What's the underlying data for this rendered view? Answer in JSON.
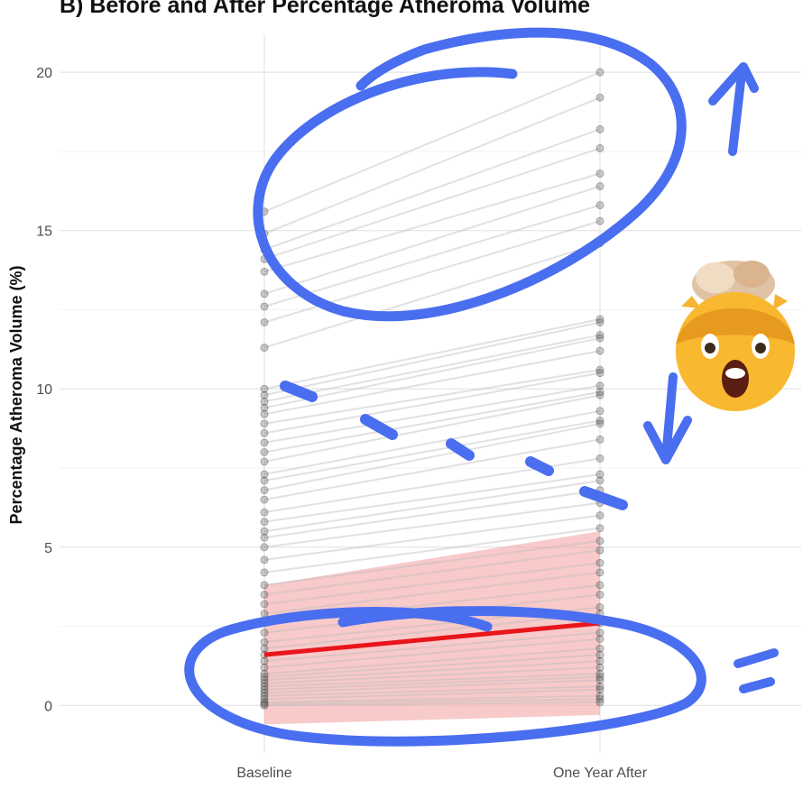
{
  "chart_data": {
    "type": "line",
    "title": "B) Before and After Percentage Atheroma Volume",
    "xlabel": "",
    "ylabel": "Percentage Atheroma Volume (%)",
    "categories": [
      "Baseline",
      "One Year After"
    ],
    "ylim": [
      -1.5,
      21.2
    ],
    "yticks": [
      0,
      5,
      10,
      15,
      20
    ],
    "grid": true,
    "legend": "none",
    "colors": {
      "individual_lines": "#bdbdbd",
      "points": "#555555",
      "trend": "#e8161b",
      "band": "#f4a6a6",
      "annotation": "#4a6ef0"
    },
    "series": [
      {
        "values": [
          15.6,
          20.0
        ]
      },
      {
        "values": [
          14.9,
          19.2
        ]
      },
      {
        "values": [
          14.4,
          18.2
        ]
      },
      {
        "values": [
          14.1,
          17.6
        ]
      },
      {
        "values": [
          13.7,
          16.8
        ]
      },
      {
        "values": [
          13.0,
          16.4
        ]
      },
      {
        "values": [
          12.6,
          15.8
        ]
      },
      {
        "values": [
          12.1,
          15.3
        ]
      },
      {
        "values": [
          11.3,
          14.6
        ]
      },
      {
        "values": [
          10.0,
          12.2
        ]
      },
      {
        "values": [
          9.8,
          12.1
        ]
      },
      {
        "values": [
          9.6,
          11.7
        ]
      },
      {
        "values": [
          9.4,
          11.6
        ]
      },
      {
        "values": [
          9.2,
          11.2
        ]
      },
      {
        "values": [
          8.9,
          10.6
        ]
      },
      {
        "values": [
          8.6,
          10.5
        ]
      },
      {
        "values": [
          8.3,
          10.1
        ]
      },
      {
        "values": [
          8.0,
          9.9
        ]
      },
      {
        "values": [
          7.7,
          9.8
        ]
      },
      {
        "values": [
          7.3,
          9.3
        ]
      },
      {
        "values": [
          7.1,
          9.0
        ]
      },
      {
        "values": [
          6.8,
          8.9
        ]
      },
      {
        "values": [
          6.5,
          8.4
        ]
      },
      {
        "values": [
          6.1,
          7.8
        ]
      },
      {
        "values": [
          5.8,
          7.3
        ]
      },
      {
        "values": [
          5.5,
          7.1
        ]
      },
      {
        "values": [
          5.3,
          6.8
        ]
      },
      {
        "values": [
          5.0,
          6.4
        ]
      },
      {
        "values": [
          4.6,
          6.0
        ]
      },
      {
        "values": [
          4.2,
          5.6
        ]
      },
      {
        "values": [
          3.8,
          5.2
        ]
      },
      {
        "values": [
          3.5,
          4.9
        ]
      },
      {
        "values": [
          3.2,
          4.5
        ]
      },
      {
        "values": [
          2.9,
          4.2
        ]
      },
      {
        "values": [
          2.6,
          3.8
        ]
      },
      {
        "values": [
          2.3,
          3.5
        ]
      },
      {
        "values": [
          2.0,
          3.1
        ]
      },
      {
        "values": [
          1.8,
          2.9
        ]
      },
      {
        "values": [
          1.6,
          2.6
        ]
      },
      {
        "values": [
          1.4,
          2.3
        ]
      },
      {
        "values": [
          1.2,
          2.1
        ]
      },
      {
        "values": [
          1.0,
          1.8
        ]
      },
      {
        "values": [
          0.9,
          1.6
        ]
      },
      {
        "values": [
          0.8,
          1.4
        ]
      },
      {
        "values": [
          0.7,
          1.2
        ]
      },
      {
        "values": [
          0.6,
          1.0
        ]
      },
      {
        "values": [
          0.5,
          0.9
        ]
      },
      {
        "values": [
          0.4,
          0.8
        ]
      },
      {
        "values": [
          0.3,
          0.6
        ]
      },
      {
        "values": [
          0.2,
          0.5
        ]
      },
      {
        "values": [
          0.1,
          0.3
        ]
      },
      {
        "values": [
          0.05,
          0.2
        ]
      },
      {
        "values": [
          0.0,
          0.1
        ]
      }
    ],
    "trend": {
      "values": [
        1.6,
        2.6
      ],
      "band_lower": [
        -0.6,
        -0.3
      ],
      "band_upper": [
        3.8,
        5.5
      ]
    }
  }
}
